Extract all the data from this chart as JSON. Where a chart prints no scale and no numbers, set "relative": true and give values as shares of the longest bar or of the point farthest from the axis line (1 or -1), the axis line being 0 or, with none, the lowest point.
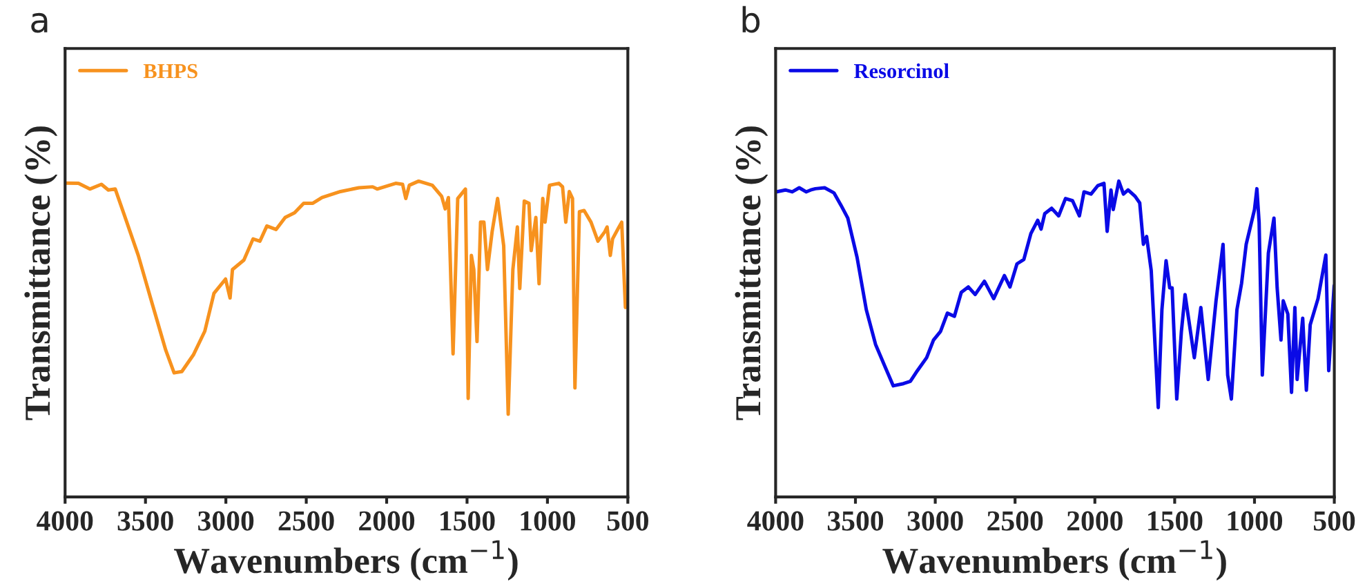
{
  "chart_data": [
    {
      "type": "line",
      "relative": true,
      "xlabel": "Wavenumbers (cm$^{−1}$)",
      "ylabel": "Transmittance (%)",
      "xlim": [
        4000,
        500
      ],
      "xticks": [
        4000,
        3500,
        3000,
        2500,
        2000,
        1500,
        1000,
        500
      ],
      "tick_labels": "x",
      "legend": "top left",
      "grid": false,
      "annotations": [
        "a"
      ],
      "series": [
        {
          "name": "BHPS",
          "color": "#f7921e",
          "x": [
            4000,
            3917,
            3846,
            3774,
            3731,
            3688,
            3631,
            3545,
            3460,
            3374,
            3322,
            3274,
            3202,
            3131,
            3074,
            3002,
            2974,
            2959,
            2888,
            2831,
            2788,
            2745,
            2688,
            2631,
            2573,
            2516,
            2459,
            2402,
            2287,
            2173,
            2087,
            2059,
            1944,
            1901,
            1881,
            1859,
            1801,
            1716,
            1658,
            1636,
            1616,
            1587,
            1558,
            1510,
            1493,
            1473,
            1458,
            1438,
            1416,
            1395,
            1373,
            1344,
            1310,
            1272,
            1244,
            1215,
            1187,
            1172,
            1144,
            1115,
            1101,
            1072,
            1052,
            1029,
            1015,
            987,
            929,
            906,
            886,
            864,
            844,
            829,
            801,
            772,
            729,
            686,
            643,
            629,
            609,
            595,
            558,
            538,
            515
          ],
          "values": [
            0.994,
            0.993,
            0.975,
            0.99,
            0.972,
            0.975,
            0.892,
            0.765,
            0.615,
            0.465,
            0.393,
            0.397,
            0.45,
            0.525,
            0.645,
            0.69,
            0.63,
            0.72,
            0.75,
            0.817,
            0.81,
            0.858,
            0.847,
            0.885,
            0.9,
            0.93,
            0.93,
            0.948,
            0.967,
            0.979,
            0.982,
            0.975,
            0.993,
            0.99,
            0.945,
            0.987,
            1.0,
            0.987,
            0.952,
            0.912,
            0.948,
            0.453,
            0.945,
            0.975,
            0.312,
            0.765,
            0.72,
            0.492,
            0.87,
            0.87,
            0.72,
            0.84,
            0.945,
            0.795,
            0.262,
            0.72,
            0.855,
            0.66,
            0.937,
            0.93,
            0.78,
            0.885,
            0.675,
            0.945,
            0.87,
            0.987,
            0.993,
            0.982,
            0.87,
            0.967,
            0.945,
            0.345,
            0.903,
            0.907,
            0.87,
            0.81,
            0.84,
            0.855,
            0.765,
            0.817,
            0.852,
            0.87,
            0.6
          ]
        }
      ]
    },
    {
      "type": "line",
      "relative": true,
      "xlabel": "Wavenumbers (cm$^{−1}$)",
      "ylabel": "Transmittance (%)",
      "xlim": [
        4000,
        500
      ],
      "xticks": [
        4000,
        3500,
        3000,
        2500,
        2000,
        1500,
        1000,
        500
      ],
      "tick_labels": "x",
      "legend": "top left",
      "grid": false,
      "annotations": [
        "b"
      ],
      "series": [
        {
          "name": "Resorcinol",
          "color": "#0a0ae6",
          "x": [
            3997,
            3939,
            3896,
            3852,
            3809,
            3780,
            3751,
            3693,
            3635,
            3591,
            3548,
            3490,
            3432,
            3374,
            3316,
            3263,
            3199,
            3156,
            3112,
            3054,
            3011,
            2967,
            2924,
            2880,
            2837,
            2793,
            2750,
            2692,
            2634,
            2567,
            2532,
            2488,
            2445,
            2401,
            2358,
            2337,
            2314,
            2271,
            2227,
            2184,
            2140,
            2097,
            2068,
            2024,
            1981,
            1943,
            1923,
            1899,
            1885,
            1850,
            1821,
            1792,
            1748,
            1719,
            1696,
            1676,
            1647,
            1603,
            1580,
            1554,
            1531,
            1516,
            1487,
            1458,
            1435,
            1377,
            1336,
            1290,
            1241,
            1197,
            1168,
            1145,
            1110,
            1081,
            1052,
            1000,
            985,
            971,
            951,
            913,
            878,
            858,
            834,
            820,
            791,
            768,
            747,
            733,
            698,
            675,
            651,
            602,
            553,
            535,
            501
          ],
          "values": [
            0.966,
            0.972,
            0.966,
            0.979,
            0.966,
            0.972,
            0.976,
            0.979,
            0.963,
            0.924,
            0.883,
            0.759,
            0.593,
            0.483,
            0.414,
            0.352,
            0.359,
            0.366,
            0.4,
            0.441,
            0.497,
            0.524,
            0.582,
            0.572,
            0.648,
            0.665,
            0.641,
            0.683,
            0.628,
            0.701,
            0.665,
            0.738,
            0.752,
            0.834,
            0.876,
            0.848,
            0.897,
            0.914,
            0.89,
            0.945,
            0.938,
            0.89,
            0.966,
            0.959,
            0.986,
            0.993,
            0.841,
            0.972,
            0.91,
            1.0,
            0.959,
            0.972,
            0.952,
            0.931,
            0.8,
            0.825,
            0.717,
            0.283,
            0.593,
            0.748,
            0.662,
            0.662,
            0.31,
            0.524,
            0.641,
            0.441,
            0.6,
            0.372,
            0.621,
            0.8,
            0.386,
            0.31,
            0.593,
            0.676,
            0.8,
            0.91,
            0.976,
            0.869,
            0.386,
            0.772,
            0.883,
            0.662,
            0.497,
            0.621,
            0.579,
            0.331,
            0.6,
            0.372,
            0.566,
            0.338,
            0.545,
            0.628,
            0.766,
            0.4,
            0.669
          ]
        }
      ]
    }
  ]
}
